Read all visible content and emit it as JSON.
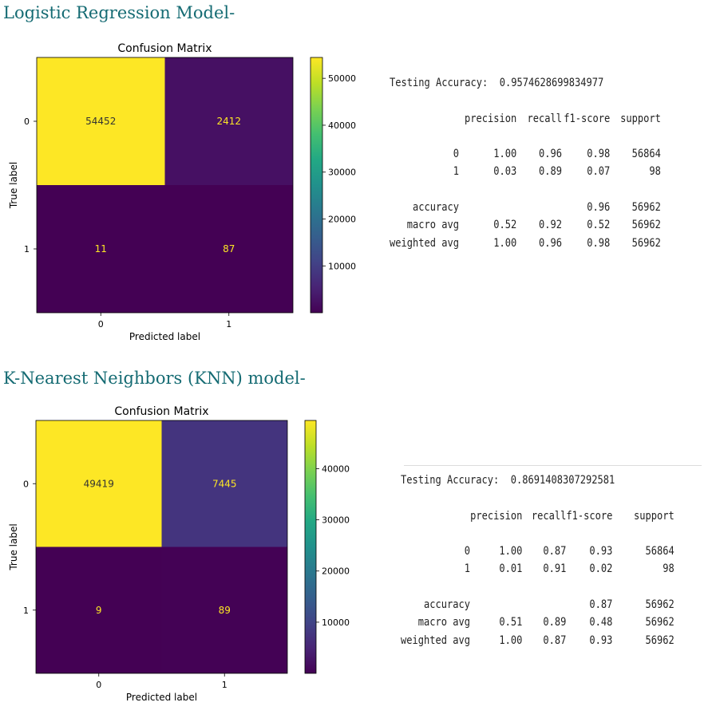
{
  "sections": [
    {
      "title": "Logistic Regression Model-",
      "chart_data": {
        "type": "heatmap",
        "title": "Confusion Matrix",
        "xlabel": "Predicted label",
        "ylabel": "True label",
        "x_tick_labels": [
          "0",
          "1"
        ],
        "y_tick_labels": [
          "0",
          "1"
        ],
        "values": [
          [
            54452,
            2412
          ],
          [
            11,
            87
          ]
        ],
        "colormap": "viridis",
        "colorbar_ticks": [
          10000,
          20000,
          30000,
          40000,
          50000
        ],
        "colorbar_tick_labels": [
          "10000",
          "20000",
          "30000",
          "40000",
          "50000"
        ],
        "grid": false
      },
      "report": {
        "accuracy_label": "Testing Accuracy:",
        "accuracy_value": "0.9574628699834977",
        "headers": [
          "precision",
          "recall",
          "f1-score",
          "support"
        ],
        "class_rows": [
          {
            "label": "0",
            "precision": "1.00",
            "recall": "0.96",
            "f1": "0.98",
            "support": "56864"
          },
          {
            "label": "1",
            "precision": "0.03",
            "recall": "0.89",
            "f1": "0.07",
            "support": "98"
          }
        ],
        "summary_rows": [
          {
            "label": "accuracy",
            "precision": "",
            "recall": "",
            "f1": "0.96",
            "support": "56962"
          },
          {
            "label": "macro avg",
            "precision": "0.52",
            "recall": "0.92",
            "f1": "0.52",
            "support": "56962"
          },
          {
            "label": "weighted avg",
            "precision": "1.00",
            "recall": "0.96",
            "f1": "0.98",
            "support": "56962"
          }
        ]
      }
    },
    {
      "title": "K-Nearest Neighbors (KNN) model-",
      "chart_data": {
        "type": "heatmap",
        "title": "Confusion Matrix",
        "xlabel": "Predicted label",
        "ylabel": "True label",
        "x_tick_labels": [
          "0",
          "1"
        ],
        "y_tick_labels": [
          "0",
          "1"
        ],
        "values": [
          [
            49419,
            7445
          ],
          [
            9,
            89
          ]
        ],
        "colormap": "viridis",
        "colorbar_ticks": [
          10000,
          20000,
          30000,
          40000
        ],
        "colorbar_tick_labels": [
          "10000",
          "20000",
          "30000",
          "40000"
        ],
        "grid": false
      },
      "report": {
        "accuracy_label": "Testing Accuracy:",
        "accuracy_value": "0.8691408307292581",
        "headers": [
          "precision",
          "recall",
          "f1-score",
          "support"
        ],
        "class_rows": [
          {
            "label": "0",
            "precision": "1.00",
            "recall": "0.87",
            "f1": "0.93",
            "support": "56864"
          },
          {
            "label": "1",
            "precision": "0.01",
            "recall": "0.91",
            "f1": "0.02",
            "support": "98"
          }
        ],
        "summary_rows": [
          {
            "label": "accuracy",
            "precision": "",
            "recall": "",
            "f1": "0.87",
            "support": "56962"
          },
          {
            "label": "macro avg",
            "precision": "0.51",
            "recall": "0.89",
            "f1": "0.48",
            "support": "56962"
          },
          {
            "label": "weighted avg",
            "precision": "1.00",
            "recall": "0.87",
            "f1": "0.93",
            "support": "56962"
          }
        ]
      }
    }
  ]
}
